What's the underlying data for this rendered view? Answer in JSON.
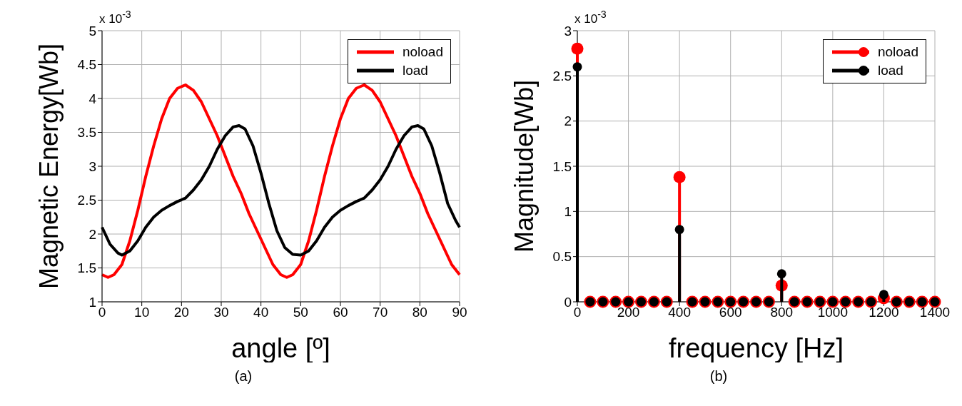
{
  "chart_data": [
    {
      "type": "line",
      "xlabel": "angle [º]",
      "ylabel": "Magnetic Energy[Wb]",
      "xlim": [
        0,
        90
      ],
      "xticks": [
        0,
        10,
        20,
        30,
        40,
        50,
        60,
        70,
        80,
        90
      ],
      "ylim": [
        1,
        5
      ],
      "yticks": [
        1,
        1.5,
        2,
        2.5,
        3,
        3.5,
        4,
        4.5,
        5
      ],
      "grid": true,
      "legend": "top right",
      "line_style": "solid",
      "annotations": [
        "x 10$^{-3}$",
        "(a)"
      ],
      "series": [
        {
          "name": "noload",
          "color": "#ff0000",
          "x": [
            0,
            1.5,
            3,
            5,
            7,
            9,
            11,
            13,
            15,
            17,
            19,
            21,
            23,
            25,
            27,
            29,
            31,
            33,
            35,
            37,
            39,
            41,
            43,
            45,
            46.5,
            48,
            50,
            52,
            54,
            56,
            58,
            60,
            62,
            64,
            66,
            68,
            70,
            72,
            74,
            76,
            78,
            80,
            82,
            84,
            86,
            88,
            90
          ],
          "values": [
            1.4,
            1.36,
            1.4,
            1.55,
            1.9,
            2.35,
            2.85,
            3.3,
            3.7,
            4.0,
            4.15,
            4.2,
            4.12,
            3.95,
            3.7,
            3.45,
            3.15,
            2.85,
            2.6,
            2.3,
            2.05,
            1.8,
            1.55,
            1.4,
            1.36,
            1.4,
            1.55,
            1.9,
            2.35,
            2.85,
            3.3,
            3.7,
            4.0,
            4.15,
            4.2,
            4.12,
            3.95,
            3.7,
            3.45,
            3.15,
            2.85,
            2.6,
            2.3,
            2.05,
            1.8,
            1.55,
            1.4
          ]
        },
        {
          "name": "load",
          "color": "#000000",
          "x": [
            0,
            2,
            4,
            5,
            7,
            9,
            11,
            13,
            15,
            17,
            19,
            21,
            23,
            25,
            27,
            29,
            31,
            33,
            34.5,
            36,
            38,
            40,
            42,
            44,
            46,
            48,
            50,
            52,
            54,
            56,
            58,
            60,
            62,
            64,
            66,
            68,
            70,
            72,
            74,
            76,
            78,
            79.5,
            81,
            83,
            85,
            87,
            89,
            90
          ],
          "values": [
            2.1,
            1.85,
            1.72,
            1.69,
            1.75,
            1.9,
            2.1,
            2.25,
            2.35,
            2.42,
            2.48,
            2.53,
            2.65,
            2.8,
            3.0,
            3.25,
            3.45,
            3.58,
            3.6,
            3.55,
            3.3,
            2.9,
            2.45,
            2.05,
            1.8,
            1.7,
            1.69,
            1.75,
            1.9,
            2.1,
            2.25,
            2.35,
            2.42,
            2.48,
            2.53,
            2.65,
            2.8,
            3.0,
            3.25,
            3.45,
            3.58,
            3.6,
            3.55,
            3.3,
            2.9,
            2.45,
            2.2,
            2.1
          ]
        }
      ]
    },
    {
      "type": "lollipop",
      "xlabel": "frequency [Hz]",
      "ylabel": "Magnitude[Wb]",
      "xlim": [
        0,
        1400
      ],
      "xticks": [
        0,
        200,
        400,
        600,
        800,
        1000,
        1200,
        1400
      ],
      "ylim": [
        0,
        3
      ],
      "yticks": [
        0,
        0.5,
        1,
        1.5,
        2,
        2.5,
        3
      ],
      "grid": true,
      "legend": "top right",
      "marker": "circle",
      "annotations": [
        "x 10$^{-3}$",
        "(b)"
      ],
      "x": [
        0,
        50,
        100,
        150,
        200,
        250,
        300,
        350,
        400,
        450,
        500,
        550,
        600,
        650,
        700,
        750,
        800,
        850,
        900,
        950,
        1000,
        1050,
        1100,
        1150,
        1200,
        1250,
        1300,
        1350,
        1400
      ],
      "series": [
        {
          "name": "noload",
          "color": "#ff0000",
          "values": [
            2.8,
            0,
            0,
            0,
            0,
            0,
            0,
            0,
            1.38,
            0,
            0,
            0,
            0,
            0,
            0,
            0,
            0.18,
            0,
            0,
            0,
            0,
            0,
            0,
            0,
            0.04,
            0,
            0,
            0,
            0
          ]
        },
        {
          "name": "load",
          "color": "#000000",
          "values": [
            2.6,
            0,
            0,
            0,
            0,
            0,
            0,
            0,
            0.8,
            0,
            0,
            0,
            0,
            0,
            0,
            0,
            0.31,
            0,
            0,
            0,
            0,
            0,
            0,
            0,
            0.08,
            0,
            0,
            0,
            0
          ]
        }
      ]
    }
  ]
}
